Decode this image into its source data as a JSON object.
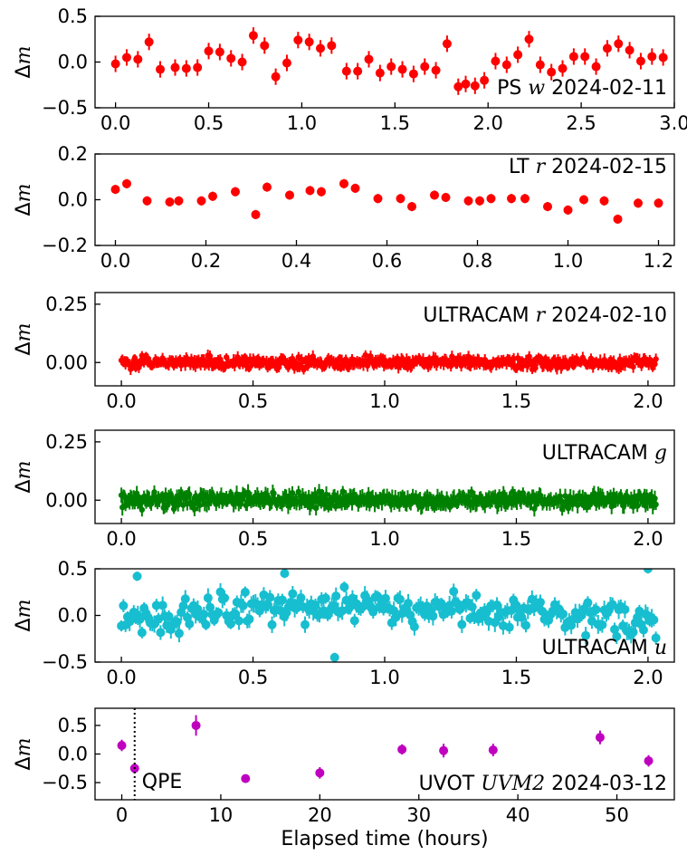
{
  "figure": {
    "xlabel": "Elapsed time (hours)"
  },
  "chart_data": [
    {
      "type": "scatter",
      "title_text": "PS ",
      "title_band": "w",
      "title_date": " 2024-02-11",
      "ylabel_text": "Δ",
      "ylabel_var": "m",
      "color": "#ff0000",
      "xlim": [
        -0.11,
        3.0
      ],
      "ylim": [
        -0.5,
        0.5
      ],
      "xticks": [
        0.0,
        0.5,
        1.0,
        1.5,
        2.0,
        2.5,
        3.0
      ],
      "xtick_labels": [
        "0.0",
        "0.5",
        "1.0",
        "1.5",
        "2.0",
        "2.5",
        "3.0"
      ],
      "yticks": [
        -0.5,
        0.0,
        0.5
      ],
      "ytick_labels": [
        "−0.5",
        "0.0",
        "0.5"
      ],
      "x": [
        0.0,
        0.06,
        0.12,
        0.18,
        0.24,
        0.32,
        0.38,
        0.44,
        0.5,
        0.56,
        0.62,
        0.68,
        0.74,
        0.8,
        0.86,
        0.92,
        0.98,
        1.04,
        1.1,
        1.16,
        1.24,
        1.3,
        1.36,
        1.42,
        1.48,
        1.54,
        1.6,
        1.66,
        1.72,
        1.78,
        1.84,
        1.88,
        1.93,
        1.98,
        2.04,
        2.1,
        2.16,
        2.22,
        2.28,
        2.34,
        2.4,
        2.46,
        2.52,
        2.58,
        2.64,
        2.7,
        2.76,
        2.82,
        2.88,
        2.94
      ],
      "y": [
        -0.02,
        0.05,
        0.03,
        0.22,
        -0.08,
        -0.06,
        -0.07,
        -0.06,
        0.12,
        0.11,
        0.04,
        0.0,
        0.29,
        0.18,
        -0.16,
        -0.01,
        0.24,
        0.22,
        0.15,
        0.18,
        -0.1,
        -0.1,
        0.03,
        -0.12,
        -0.05,
        -0.08,
        -0.13,
        -0.05,
        -0.09,
        0.2,
        -0.27,
        -0.24,
        -0.26,
        -0.2,
        0.01,
        -0.03,
        0.08,
        0.25,
        -0.03,
        -0.11,
        -0.07,
        0.06,
        0.06,
        -0.05,
        0.15,
        0.2,
        0.13,
        0.01,
        0.06,
        0.05
      ],
      "yerr": 0.09
    },
    {
      "type": "scatter",
      "title_text": "LT ",
      "title_band": "r",
      "title_date": " 2024-02-15",
      "ylabel_text": "Δ",
      "ylabel_var": "m",
      "color": "#ff0000",
      "xlim": [
        -0.045,
        1.235
      ],
      "ylim": [
        -0.2,
        0.2
      ],
      "xticks": [
        0.0,
        0.2,
        0.4,
        0.6,
        0.8,
        1.0,
        1.2
      ],
      "xtick_labels": [
        "0.0",
        "0.2",
        "0.4",
        "0.6",
        "0.8",
        "1.0",
        "1.2"
      ],
      "yticks": [
        -0.2,
        0.0,
        0.2
      ],
      "ytick_labels": [
        "−0.2",
        "0.0",
        "0.2"
      ],
      "x": [
        0.0,
        0.025,
        0.07,
        0.12,
        0.14,
        0.19,
        0.215,
        0.265,
        0.31,
        0.335,
        0.385,
        0.43,
        0.455,
        0.505,
        0.53,
        0.58,
        0.63,
        0.655,
        0.705,
        0.73,
        0.78,
        0.805,
        0.83,
        0.875,
        0.905,
        0.955,
        1.0,
        1.035,
        1.08,
        1.11,
        1.155,
        1.2
      ],
      "y": [
        0.045,
        0.07,
        -0.005,
        -0.01,
        -0.005,
        -0.005,
        0.015,
        0.035,
        -0.065,
        0.055,
        0.02,
        0.04,
        0.035,
        0.07,
        0.05,
        0.005,
        0.005,
        -0.03,
        0.02,
        0.01,
        -0.005,
        -0.005,
        0.005,
        0.005,
        0.005,
        -0.03,
        -0.045,
        0.0,
        -0.005,
        -0.085,
        -0.015,
        -0.015
      ],
      "yerr": 0.02
    },
    {
      "type": "scatter",
      "title_text": "ULTRACAM ",
      "title_band": "r",
      "title_date": " 2024-02-10",
      "ylabel_text": "Δ",
      "ylabel_var": "m",
      "color": "#ff0000",
      "xlim": [
        -0.1,
        2.1
      ],
      "ylim": [
        -0.1,
        0.3
      ],
      "xticks": [
        0.0,
        0.5,
        1.0,
        1.5,
        2.0
      ],
      "xtick_labels": [
        "0.0",
        "0.5",
        "1.0",
        "1.5",
        "2.0"
      ],
      "yticks": [
        0.0,
        0.25
      ],
      "ytick_labels": [
        "0.00",
        "0.25"
      ],
      "dense": {
        "n": 520,
        "x0": 0.0,
        "x1": 2.03,
        "seed": 11,
        "amp": 0.018,
        "yerr": 0.022,
        "r": 3.2
      }
    },
    {
      "type": "scatter",
      "title_text": "ULTRACAM ",
      "title_band": "g",
      "title_date": "",
      "ylabel_text": "Δ",
      "ylabel_var": "m",
      "color": "#008000",
      "xlim": [
        -0.1,
        2.1
      ],
      "ylim": [
        -0.1,
        0.3
      ],
      "xticks": [
        0.0,
        0.5,
        1.0,
        1.5,
        2.0
      ],
      "xtick_labels": [
        "0.0",
        "0.5",
        "1.0",
        "1.5",
        "2.0"
      ],
      "yticks": [
        0.0,
        0.25
      ],
      "ytick_labels": [
        "0.00",
        "0.25"
      ],
      "dense": {
        "n": 520,
        "x0": 0.0,
        "x1": 2.03,
        "seed": 29,
        "amp": 0.022,
        "yerr": 0.028,
        "r": 3.2
      }
    },
    {
      "type": "scatter",
      "title_text": "ULTRACAM ",
      "title_band": "u",
      "title_date": "",
      "ylabel_text": "Δ",
      "ylabel_var": "m",
      "color": "#17becf",
      "xlim": [
        -0.1,
        2.1
      ],
      "ylim": [
        -0.5,
        0.5
      ],
      "xticks": [
        0.0,
        0.5,
        1.0,
        1.5,
        2.0
      ],
      "xtick_labels": [
        "0.0",
        "0.5",
        "1.0",
        "1.5",
        "2.0"
      ],
      "yticks": [
        -0.5,
        0.0,
        0.5
      ],
      "ytick_labels": [
        "−0.5",
        "0.0",
        "0.5"
      ],
      "dense": {
        "n": 260,
        "x0": 0.0,
        "x1": 2.03,
        "seed": 47,
        "amp": 0.12,
        "yerr": 0.08,
        "r": 5
      },
      "extra_points": {
        "x": [
          0.06,
          0.62,
          0.81,
          2.0
        ],
        "y": [
          0.42,
          0.45,
          -0.45,
          0.5
        ]
      }
    },
    {
      "type": "scatter",
      "title_text": "UVOT ",
      "title_band": "UVM2",
      "title_date": " 2024-03-12",
      "ylabel_text": "Δ",
      "ylabel_var": "m",
      "color": "#bf00bf",
      "xlim": [
        -2.7,
        55.8
      ],
      "ylim": [
        -0.8,
        0.8
      ],
      "xticks": [
        0,
        10,
        20,
        30,
        40,
        50
      ],
      "xtick_labels": [
        "0",
        "10",
        "20",
        "30",
        "40",
        "50"
      ],
      "yticks": [
        -0.5,
        0.0,
        0.5
      ],
      "ytick_labels": [
        "−0.5",
        "0.0",
        "0.5"
      ],
      "x": [
        0.0,
        1.3,
        7.5,
        12.5,
        20.0,
        28.3,
        32.5,
        37.5,
        48.3,
        53.2
      ],
      "y": [
        0.15,
        -0.25,
        0.5,
        -0.43,
        -0.33,
        0.08,
        0.06,
        0.07,
        0.29,
        -0.12
      ],
      "yerr": [
        0.1,
        0.09,
        0.18,
        0.06,
        0.1,
        0.09,
        0.12,
        0.11,
        0.12,
        0.1
      ],
      "vline_x": 1.3,
      "annotation": "QPE"
    }
  ]
}
